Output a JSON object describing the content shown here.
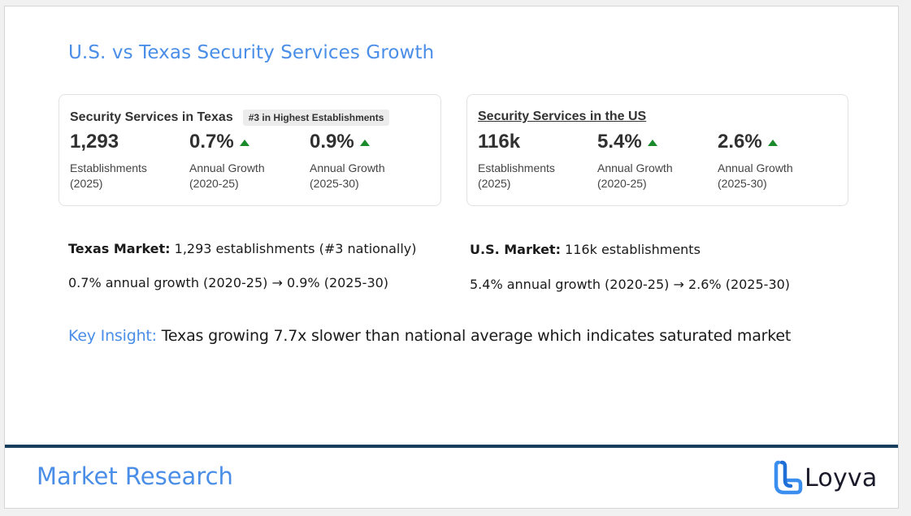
{
  "slide": {
    "title": "U.S. vs Texas Security Services Growth"
  },
  "texas_card": {
    "title": "Security Services in Texas",
    "badge": "#3 in Highest Establishments",
    "metrics": [
      {
        "value": "1,293",
        "label": "Establishments",
        "period": "(2025)",
        "trend": "none"
      },
      {
        "value": "0.7%",
        "label": "Annual Growth",
        "period": "(2020-25)",
        "trend": "up"
      },
      {
        "value": "0.9%",
        "label": "Annual Growth",
        "period": "(2025-30)",
        "trend": "up"
      }
    ]
  },
  "us_card": {
    "title": "Security Services in the US",
    "metrics": [
      {
        "value": "116k",
        "label": "Establishments",
        "period": "(2025)",
        "trend": "none"
      },
      {
        "value": "5.4%",
        "label": "Annual Growth",
        "period": "(2020-25)",
        "trend": "up"
      },
      {
        "value": "2.6%",
        "label": "Annual Growth",
        "period": "(2025-30)",
        "trend": "up"
      }
    ]
  },
  "texas_summary": {
    "market_label": "Texas Market:",
    "market_text": " 1,293 establishments (#3 nationally)",
    "growth_text": "0.7% annual growth (2020-25) → 0.9% (2025-30)"
  },
  "us_summary": {
    "market_label": "U.S. Market:",
    "market_text": " 116k establishments",
    "growth_text": "5.4% annual growth (2020-25) → 2.6% (2025-30)"
  },
  "insight": {
    "key_label": "Key Insight:",
    "text": " Texas growing 7.7x slower than national average which indicates saturated market"
  },
  "footer": {
    "title": "Market Research",
    "logo_text": "Loyva",
    "trend_up_color": "#1b8a2b",
    "accent_color": "#4a8ee8",
    "bar_color": "#173e5d"
  }
}
